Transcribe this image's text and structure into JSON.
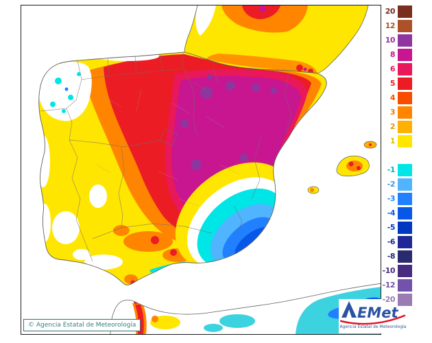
{
  "legend": {
    "gap_after": 9,
    "entries": [
      {
        "value": "20",
        "color": "#7a2e1d",
        "label_color": "#7a2e1d"
      },
      {
        "value": "12",
        "color": "#ad5228",
        "label_color": "#ad5228"
      },
      {
        "value": "10",
        "color": "#8f35a0",
        "label_color": "#8f35a0"
      },
      {
        "value": "8",
        "color": "#c81690",
        "label_color": "#c81690"
      },
      {
        "value": "6",
        "color": "#e8185a",
        "label_color": "#e8185a"
      },
      {
        "value": "5",
        "color": "#ec1c24",
        "label_color": "#ec1c24"
      },
      {
        "value": "4",
        "color": "#f84c00",
        "label_color": "#f84c00"
      },
      {
        "value": "3",
        "color": "#ff8500",
        "label_color": "#f07800"
      },
      {
        "value": "2",
        "color": "#ffb000",
        "label_color": "#e09800"
      },
      {
        "value": "1",
        "color": "#ffe600",
        "label_color": "#d8c300"
      },
      {
        "value": "-1",
        "color": "#00e6e6",
        "label_color": "#00b8c8"
      },
      {
        "value": "-2",
        "color": "#50b4ff",
        "label_color": "#3c96e6"
      },
      {
        "value": "-3",
        "color": "#2080ff",
        "label_color": "#2080ff"
      },
      {
        "value": "-4",
        "color": "#0858e8",
        "label_color": "#0858e8"
      },
      {
        "value": "-5",
        "color": "#0038c0",
        "label_color": "#0038c0"
      },
      {
        "value": "-6",
        "color": "#202898",
        "label_color": "#202898"
      },
      {
        "value": "-8",
        "color": "#2a2a6e",
        "label_color": "#2a2a6e"
      },
      {
        "value": "-10",
        "color": "#482a80",
        "label_color": "#482a80"
      },
      {
        "value": "-12",
        "color": "#7252aa",
        "label_color": "#7252aa"
      },
      {
        "value": "-20",
        "color": "#9a7bb4",
        "label_color": "#9a7bb4"
      }
    ]
  },
  "footer": {
    "copyright": "© Agencia Estatal de Meteorología"
  },
  "logo": {
    "wordmark": "AEMet",
    "wordmark_tail": "EMet",
    "subtitle": "Agencia Estatal de Meteorología"
  },
  "map": {
    "sea_color": "#ffffff",
    "coastline_color": "#606060",
    "frame_color": "#1a1a1a"
  }
}
